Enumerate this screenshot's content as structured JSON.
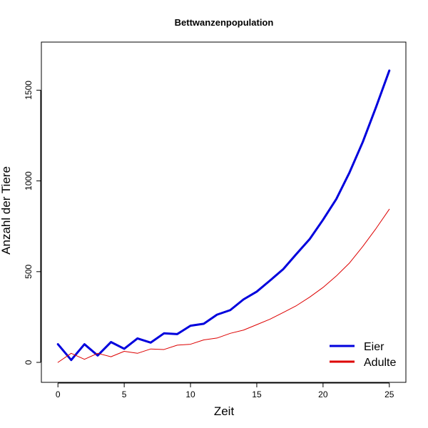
{
  "chart_data": {
    "type": "line",
    "title": "Bettwanzenpopulation",
    "xlabel": "Zeit",
    "ylabel": "Anzahl der Tiere",
    "xlim": [
      -1.25,
      26.25
    ],
    "ylim": [
      -110,
      1765
    ],
    "x_ticks": [
      0,
      5,
      10,
      15,
      20,
      25
    ],
    "y_ticks": [
      0,
      500,
      1000,
      1500
    ],
    "grid": false,
    "legend_position": "bottom-right",
    "x": [
      0,
      1,
      2,
      3,
      4,
      5,
      6,
      7,
      8,
      9,
      10,
      11,
      12,
      13,
      14,
      15,
      16,
      17,
      18,
      19,
      20,
      21,
      22,
      23,
      24,
      25
    ],
    "series": [
      {
        "name": "Eier",
        "color": "#0000dd",
        "line_width": 3,
        "values": [
          100,
          13,
          100,
          38,
          112,
          75,
          132,
          109,
          160,
          156,
          202,
          213,
          263,
          288,
          347,
          390,
          451,
          514,
          598,
          680,
          786,
          900,
          1047,
          1215,
          1407,
          1608
        ]
      },
      {
        "name": "Adulte",
        "color": "#dd0000",
        "line_width": 1,
        "values": [
          0,
          50,
          17,
          50,
          31,
          61,
          50,
          74,
          71,
          95,
          100,
          124,
          134,
          160,
          178,
          208,
          238,
          275,
          313,
          360,
          413,
          476,
          548,
          639,
          738,
          844
        ]
      }
    ]
  }
}
